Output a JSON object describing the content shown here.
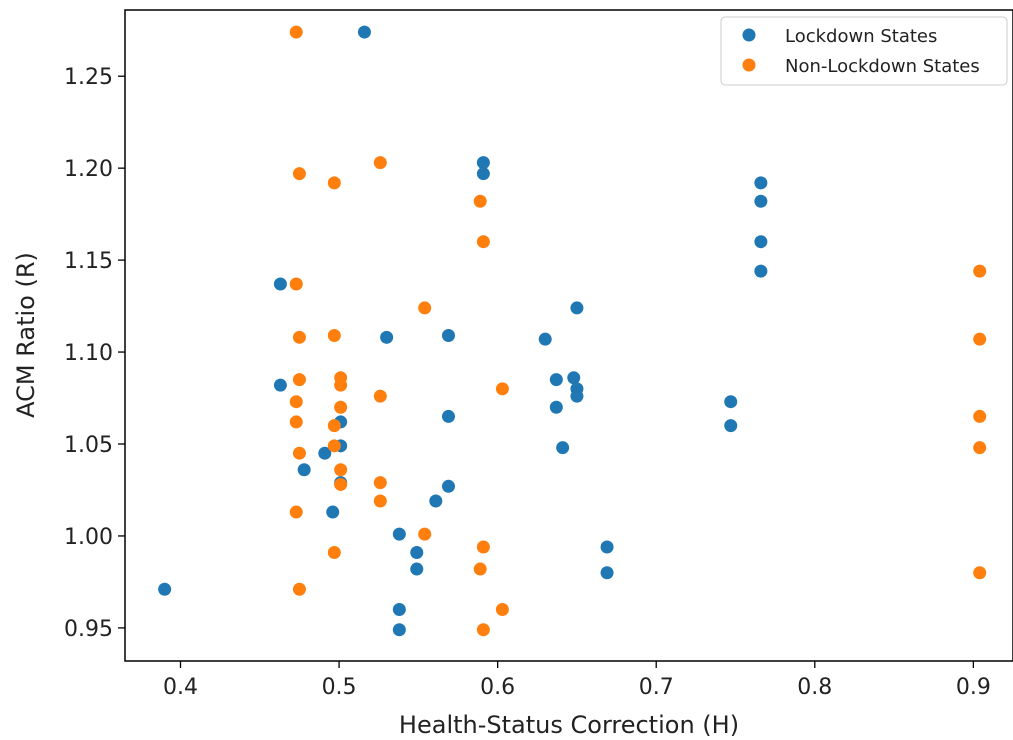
{
  "chart_data": {
    "type": "scatter",
    "title": "",
    "xlabel": "Health-Status Correction (H)",
    "ylabel": "ACM Ratio (R)",
    "xlim": [
      0.365,
      0.925
    ],
    "ylim": [
      0.932,
      1.286
    ],
    "xticks": [
      "0.4",
      "0.5",
      "0.6",
      "0.7",
      "0.8",
      "0.9"
    ],
    "yticks": [
      "0.95",
      "1.00",
      "1.05",
      "1.10",
      "1.15",
      "1.20",
      "1.25"
    ],
    "grid": false,
    "legend_position": "top-right",
    "series": [
      {
        "name": "Lockdown States",
        "color": "#1f77b4",
        "points": [
          [
            0.39,
            0.971
          ],
          [
            0.463,
            1.137
          ],
          [
            0.463,
            1.082
          ],
          [
            0.478,
            1.036
          ],
          [
            0.491,
            1.045
          ],
          [
            0.496,
            1.013
          ],
          [
            0.501,
            1.062
          ],
          [
            0.501,
            1.049
          ],
          [
            0.501,
            1.029
          ],
          [
            0.516,
            1.274
          ],
          [
            0.53,
            1.108
          ],
          [
            0.538,
            1.001
          ],
          [
            0.538,
            0.96
          ],
          [
            0.538,
            0.949
          ],
          [
            0.549,
            0.991
          ],
          [
            0.549,
            0.982
          ],
          [
            0.561,
            1.019
          ],
          [
            0.569,
            1.109
          ],
          [
            0.569,
            1.065
          ],
          [
            0.569,
            1.027
          ],
          [
            0.591,
            1.203
          ],
          [
            0.591,
            1.197
          ],
          [
            0.63,
            1.107
          ],
          [
            0.637,
            1.085
          ],
          [
            0.637,
            1.07
          ],
          [
            0.641,
            1.048
          ],
          [
            0.648,
            1.086
          ],
          [
            0.65,
            1.124
          ],
          [
            0.65,
            1.08
          ],
          [
            0.65,
            1.076
          ],
          [
            0.669,
            0.994
          ],
          [
            0.669,
            0.98
          ],
          [
            0.747,
            1.073
          ],
          [
            0.747,
            1.06
          ],
          [
            0.766,
            1.192
          ],
          [
            0.766,
            1.182
          ],
          [
            0.766,
            1.16
          ],
          [
            0.766,
            1.144
          ]
        ]
      },
      {
        "name": "Non-Lockdown States",
        "color": "#ff7f0e",
        "points": [
          [
            0.473,
            1.274
          ],
          [
            0.473,
            1.137
          ],
          [
            0.473,
            1.073
          ],
          [
            0.473,
            1.062
          ],
          [
            0.473,
            1.013
          ],
          [
            0.475,
            1.197
          ],
          [
            0.475,
            1.108
          ],
          [
            0.475,
            1.085
          ],
          [
            0.475,
            1.045
          ],
          [
            0.475,
            0.971
          ],
          [
            0.497,
            1.192
          ],
          [
            0.497,
            1.109
          ],
          [
            0.497,
            1.06
          ],
          [
            0.497,
            1.049
          ],
          [
            0.497,
            0.991
          ],
          [
            0.501,
            1.086
          ],
          [
            0.501,
            1.082
          ],
          [
            0.501,
            1.07
          ],
          [
            0.501,
            1.036
          ],
          [
            0.501,
            1.028
          ],
          [
            0.526,
            1.203
          ],
          [
            0.526,
            1.076
          ],
          [
            0.526,
            1.029
          ],
          [
            0.526,
            1.019
          ],
          [
            0.554,
            1.124
          ],
          [
            0.554,
            1.001
          ],
          [
            0.589,
            1.182
          ],
          [
            0.589,
            0.982
          ],
          [
            0.591,
            1.16
          ],
          [
            0.591,
            0.994
          ],
          [
            0.591,
            0.949
          ],
          [
            0.603,
            1.08
          ],
          [
            0.603,
            0.96
          ],
          [
            0.904,
            1.144
          ],
          [
            0.904,
            1.107
          ],
          [
            0.904,
            1.065
          ],
          [
            0.904,
            1.048
          ],
          [
            0.904,
            0.98
          ]
        ]
      }
    ]
  }
}
